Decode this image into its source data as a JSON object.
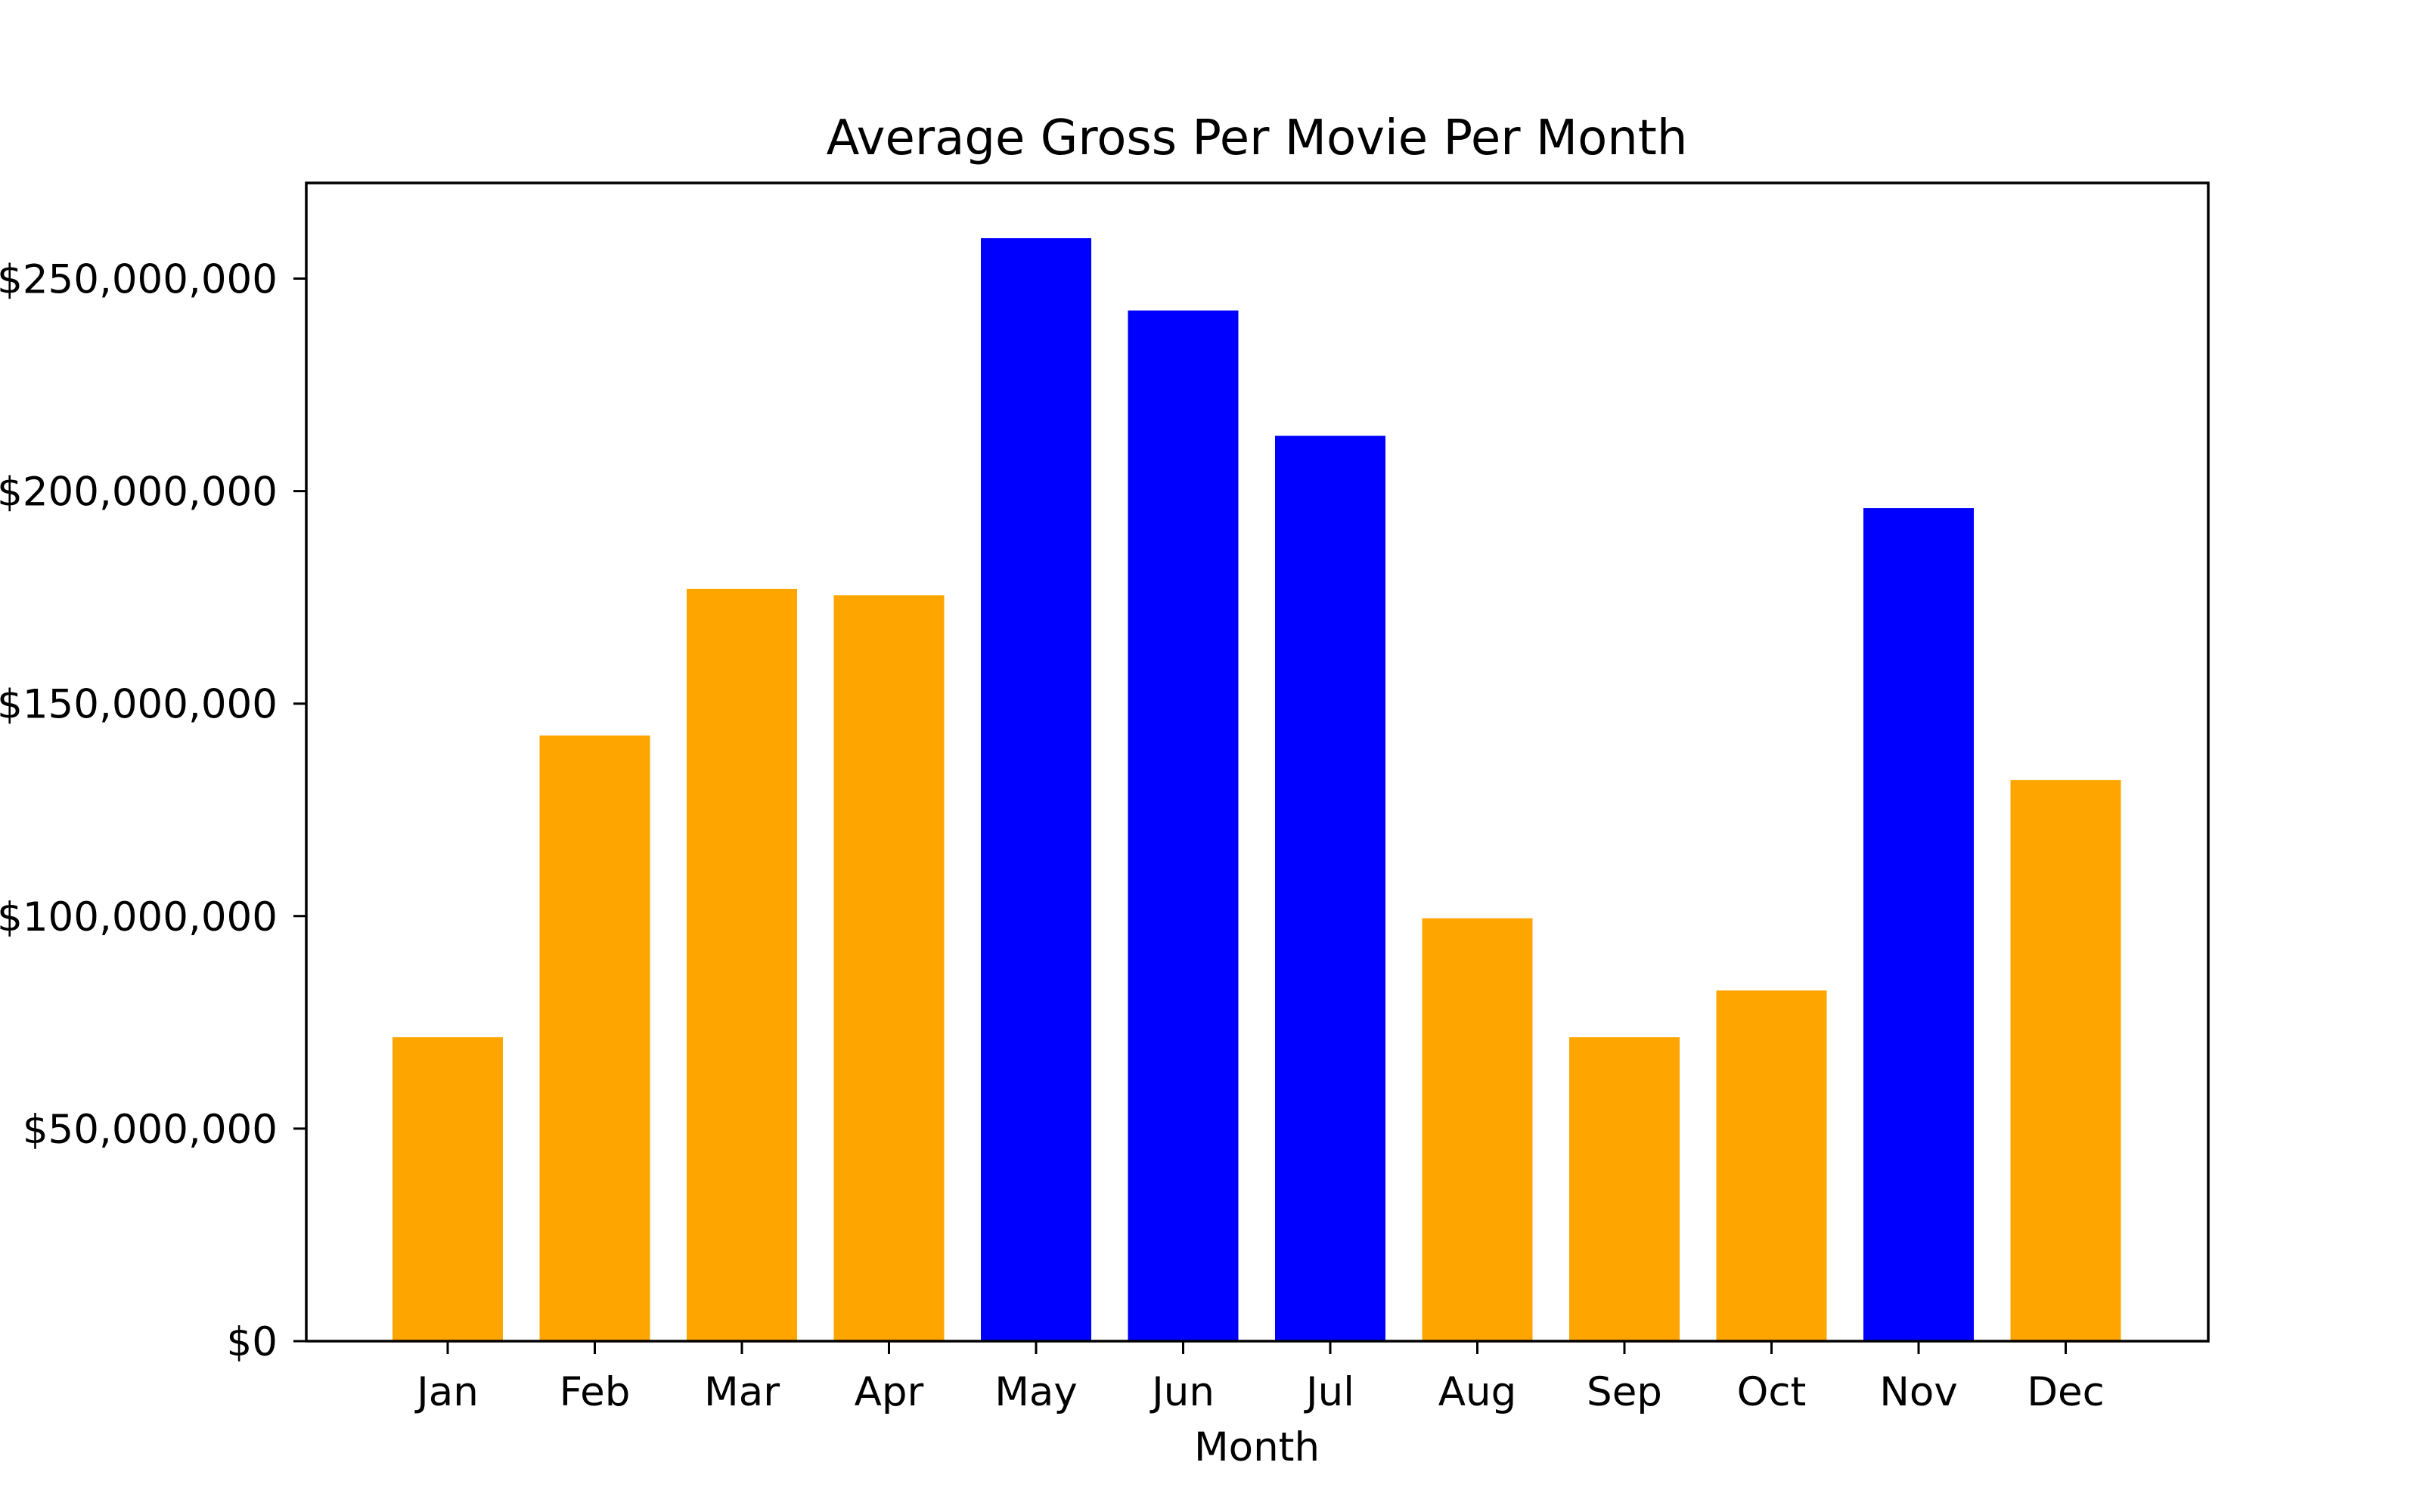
{
  "chart_data": {
    "type": "bar",
    "title": "Average Gross Per Movie Per Month",
    "xlabel": "Month",
    "ylabel": "",
    "categories": [
      "Jan",
      "Feb",
      "Mar",
      "Apr",
      "May",
      "Jun",
      "Jul",
      "Aug",
      "Sep",
      "Oct",
      "Nov",
      "Dec"
    ],
    "values": [
      71500000,
      142500000,
      177000000,
      175500000,
      259500000,
      242500000,
      213000000,
      99500000,
      71500000,
      82500000,
      196000000,
      132000000
    ],
    "bar_colors": [
      "#ffa500",
      "#ffa500",
      "#ffa500",
      "#ffa500",
      "#0000ff",
      "#0000ff",
      "#0000ff",
      "#ffa500",
      "#ffa500",
      "#ffa500",
      "#0000ff",
      "#ffa500"
    ],
    "y_ticks": [
      0,
      50000000,
      100000000,
      150000000,
      200000000,
      250000000
    ],
    "y_tick_labels": [
      "$0",
      "$50,000,000",
      "$100,000,000",
      "$150,000,000",
      "$200,000,000",
      "$250,000,000"
    ],
    "ylim": [
      0,
      272500000
    ],
    "grid": false,
    "legend": "none"
  }
}
